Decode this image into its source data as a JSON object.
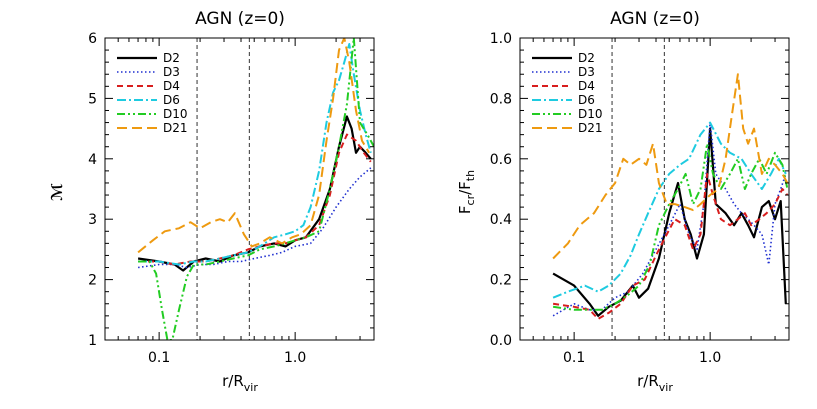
{
  "chart_data": [
    {
      "type": "line",
      "title": "AGN (z=0)",
      "xlabel": "r/R",
      "xlabel_sub": "vir",
      "ylabel": "ℳ",
      "xscale": "log",
      "xlim": [
        0.04,
        3.8
      ],
      "ylim": [
        1,
        6
      ],
      "xticks": [
        {
          "v": 0.1,
          "label": "0.1"
        },
        {
          "v": 1.0,
          "label": "1.0"
        }
      ],
      "yticks": [
        1,
        2,
        3,
        4,
        5,
        6
      ],
      "vlines": [
        0.19,
        0.46
      ],
      "series": [
        {
          "name": "D2",
          "color": "#000000",
          "dash": "",
          "width": 2.2,
          "x": [
            0.07,
            0.1,
            0.13,
            0.15,
            0.18,
            0.22,
            0.28,
            0.35,
            0.45,
            0.55,
            0.7,
            0.85,
            1.0,
            1.2,
            1.5,
            1.8,
            2.1,
            2.4,
            2.6,
            2.8,
            3.0,
            3.3,
            3.6
          ],
          "y": [
            2.35,
            2.3,
            2.25,
            2.15,
            2.3,
            2.35,
            2.3,
            2.4,
            2.45,
            2.55,
            2.6,
            2.55,
            2.65,
            2.7,
            3.0,
            3.5,
            4.2,
            4.7,
            4.5,
            4.1,
            4.2,
            4.1,
            4.0
          ]
        },
        {
          "name": "D3",
          "color": "#1f2fd0",
          "dash": "1.5,2.5",
          "width": 1.6,
          "x": [
            0.07,
            0.1,
            0.13,
            0.16,
            0.2,
            0.25,
            0.32,
            0.4,
            0.5,
            0.65,
            0.8,
            1.0,
            1.3,
            1.6,
            2.0,
            2.5,
            3.0,
            3.6
          ],
          "y": [
            2.2,
            2.25,
            2.25,
            2.2,
            2.25,
            2.25,
            2.3,
            2.3,
            2.35,
            2.4,
            2.45,
            2.55,
            2.6,
            2.85,
            3.2,
            3.5,
            3.7,
            3.85
          ]
        },
        {
          "name": "D4",
          "color": "#d81e1e",
          "dash": "6,4",
          "width": 2,
          "x": [
            0.07,
            0.1,
            0.13,
            0.17,
            0.22,
            0.28,
            0.35,
            0.45,
            0.55,
            0.7,
            0.85,
            1.0,
            1.2,
            1.5,
            1.8,
            2.1,
            2.4,
            2.8,
            3.2,
            3.6
          ],
          "y": [
            2.3,
            2.3,
            2.25,
            2.3,
            2.3,
            2.35,
            2.4,
            2.5,
            2.55,
            2.6,
            2.6,
            2.65,
            2.7,
            2.9,
            3.4,
            4.1,
            4.4,
            4.3,
            4.1,
            3.95
          ]
        },
        {
          "name": "D6",
          "color": "#1ecbe0",
          "dash": "9,3,2,3",
          "width": 2,
          "x": [
            0.07,
            0.1,
            0.14,
            0.18,
            0.22,
            0.28,
            0.35,
            0.45,
            0.55,
            0.7,
            0.85,
            1.0,
            1.15,
            1.3,
            1.5,
            1.7,
            1.9,
            2.1,
            2.3,
            2.5,
            2.7,
            3.0,
            3.3,
            3.6
          ],
          "y": [
            2.3,
            2.3,
            2.25,
            2.3,
            2.3,
            2.35,
            2.4,
            2.45,
            2.55,
            2.7,
            2.75,
            2.8,
            2.9,
            3.2,
            3.8,
            4.6,
            5.1,
            5.3,
            5.6,
            5.9,
            5.4,
            4.8,
            4.4,
            4.1
          ]
        },
        {
          "name": "D10",
          "color": "#22cc22",
          "dash": "8,3,2,3,2,3",
          "width": 2,
          "x": [
            0.07,
            0.085,
            0.095,
            0.105,
            0.115,
            0.125,
            0.14,
            0.16,
            0.18,
            0.22,
            0.28,
            0.35,
            0.45,
            0.55,
            0.7,
            0.85,
            1.0,
            1.2,
            1.5,
            1.8,
            2.1,
            2.4,
            2.7,
            3.0,
            3.4,
            3.8
          ],
          "y": [
            2.3,
            2.3,
            2.1,
            1.5,
            1.0,
            1.0,
            1.5,
            2.05,
            2.25,
            2.25,
            2.3,
            2.35,
            2.4,
            2.5,
            2.55,
            2.6,
            2.65,
            2.7,
            2.8,
            3.5,
            4.2,
            4.9,
            6.0,
            4.6,
            4.4,
            4.2
          ]
        },
        {
          "name": "D21",
          "color": "#ee9a10",
          "dash": "10,5",
          "width": 2,
          "x": [
            0.07,
            0.09,
            0.11,
            0.14,
            0.17,
            0.2,
            0.24,
            0.28,
            0.32,
            0.36,
            0.42,
            0.48,
            0.55,
            0.65,
            0.8,
            0.95,
            1.1,
            1.3,
            1.5,
            1.7,
            1.9,
            2.1,
            2.3,
            2.5,
            2.8,
            3.1,
            3.5
          ],
          "y": [
            2.45,
            2.65,
            2.8,
            2.85,
            2.95,
            2.85,
            2.95,
            3.0,
            2.95,
            3.1,
            2.75,
            2.55,
            2.6,
            2.7,
            2.6,
            2.7,
            2.75,
            2.9,
            3.4,
            4.3,
            5.0,
            5.8,
            6.0,
            5.6,
            4.8,
            4.3,
            4.1
          ]
        }
      ]
    },
    {
      "type": "line",
      "title": "AGN (z=0)",
      "xlabel": "r/R",
      "xlabel_sub": "vir",
      "ylabel": "F",
      "ylabel_sub1": "cr",
      "ylabel_mid": "/F",
      "ylabel_sub2": "th",
      "xscale": "log",
      "xlim": [
        0.04,
        3.8
      ],
      "ylim": [
        0.0,
        1.0
      ],
      "xticks": [
        {
          "v": 0.1,
          "label": "0.1"
        },
        {
          "v": 1.0,
          "label": "1.0"
        }
      ],
      "yticks": [
        "0.0",
        "0.2",
        "0.4",
        "0.6",
        "0.8",
        "1.0"
      ],
      "vlines": [
        0.19,
        0.46
      ],
      "series": [
        {
          "name": "D2",
          "color": "#000000",
          "dash": "",
          "width": 2.2,
          "x": [
            0.07,
            0.1,
            0.13,
            0.15,
            0.18,
            0.22,
            0.27,
            0.3,
            0.35,
            0.42,
            0.5,
            0.58,
            0.65,
            0.72,
            0.8,
            0.9,
            1.0,
            1.1,
            1.3,
            1.5,
            1.7,
            1.9,
            2.1,
            2.4,
            2.7,
            3.0,
            3.3,
            3.6
          ],
          "y": [
            0.22,
            0.18,
            0.12,
            0.08,
            0.11,
            0.13,
            0.18,
            0.14,
            0.17,
            0.27,
            0.42,
            0.52,
            0.4,
            0.35,
            0.27,
            0.35,
            0.7,
            0.45,
            0.42,
            0.38,
            0.42,
            0.38,
            0.34,
            0.44,
            0.46,
            0.4,
            0.46,
            0.12
          ]
        },
        {
          "name": "D3",
          "color": "#1f2fd0",
          "dash": "1.5,2.5",
          "width": 1.6,
          "x": [
            0.07,
            0.1,
            0.13,
            0.16,
            0.2,
            0.25,
            0.32,
            0.4,
            0.5,
            0.6,
            0.7,
            0.8,
            0.9,
            1.0,
            1.1,
            1.3,
            1.5,
            1.7,
            1.9,
            2.1,
            2.4,
            2.7,
            3.0,
            3.3,
            3.6
          ],
          "y": [
            0.08,
            0.12,
            0.1,
            0.1,
            0.14,
            0.16,
            0.22,
            0.3,
            0.38,
            0.45,
            0.35,
            0.3,
            0.45,
            0.72,
            0.55,
            0.5,
            0.45,
            0.42,
            0.4,
            0.38,
            0.35,
            0.25,
            0.45,
            0.5,
            0.55
          ]
        },
        {
          "name": "D4",
          "color": "#d81e1e",
          "dash": "6,4",
          "width": 2,
          "x": [
            0.07,
            0.1,
            0.13,
            0.15,
            0.18,
            0.22,
            0.27,
            0.33,
            0.4,
            0.48,
            0.55,
            0.65,
            0.75,
            0.85,
            0.95,
            1.05,
            1.2,
            1.4,
            1.6,
            1.8,
            2.0,
            2.3,
            2.6,
            3.0,
            3.4,
            3.7
          ],
          "y": [
            0.12,
            0.11,
            0.1,
            0.07,
            0.09,
            0.12,
            0.18,
            0.2,
            0.28,
            0.35,
            0.4,
            0.38,
            0.3,
            0.35,
            0.55,
            0.48,
            0.4,
            0.38,
            0.4,
            0.42,
            0.38,
            0.4,
            0.42,
            0.45,
            0.5,
            0.48
          ]
        },
        {
          "name": "D6",
          "color": "#1ecbe0",
          "dash": "9,3,2,3",
          "width": 2,
          "x": [
            0.07,
            0.09,
            0.12,
            0.15,
            0.18,
            0.22,
            0.26,
            0.3,
            0.35,
            0.42,
            0.5,
            0.6,
            0.7,
            0.85,
            1.0,
            1.2,
            1.4,
            1.7,
            2.0,
            2.4,
            2.8,
            3.2,
            3.6
          ],
          "y": [
            0.14,
            0.16,
            0.18,
            0.16,
            0.18,
            0.22,
            0.28,
            0.35,
            0.42,
            0.5,
            0.55,
            0.58,
            0.6,
            0.68,
            0.72,
            0.65,
            0.62,
            0.6,
            0.55,
            0.5,
            0.55,
            0.6,
            0.55
          ]
        },
        {
          "name": "D10",
          "color": "#22cc22",
          "dash": "8,3,2,3,2,3",
          "width": 2,
          "x": [
            0.07,
            0.1,
            0.13,
            0.16,
            0.2,
            0.25,
            0.3,
            0.36,
            0.42,
            0.5,
            0.58,
            0.66,
            0.75,
            0.85,
            0.95,
            1.05,
            1.2,
            1.4,
            1.6,
            1.8,
            2.0,
            2.3,
            2.6,
            3.0,
            3.4,
            3.7
          ],
          "y": [
            0.11,
            0.1,
            0.1,
            0.1,
            0.12,
            0.15,
            0.18,
            0.25,
            0.38,
            0.45,
            0.5,
            0.55,
            0.45,
            0.5,
            0.65,
            0.55,
            0.5,
            0.55,
            0.6,
            0.5,
            0.55,
            0.6,
            0.55,
            0.62,
            0.58,
            0.5
          ]
        },
        {
          "name": "D21",
          "color": "#ee9a10",
          "dash": "10,5",
          "width": 2,
          "x": [
            0.07,
            0.09,
            0.11,
            0.14,
            0.17,
            0.2,
            0.23,
            0.26,
            0.3,
            0.34,
            0.38,
            0.42,
            0.48,
            0.55,
            0.65,
            0.75,
            0.85,
            1.0,
            1.15,
            1.3,
            1.45,
            1.6,
            1.75,
            1.9,
            2.1,
            2.4,
            2.7,
            3.0,
            3.4,
            3.7
          ],
          "y": [
            0.27,
            0.32,
            0.38,
            0.42,
            0.48,
            0.52,
            0.6,
            0.58,
            0.6,
            0.58,
            0.65,
            0.52,
            0.45,
            0.45,
            0.44,
            0.43,
            0.45,
            0.48,
            0.5,
            0.6,
            0.75,
            0.88,
            0.7,
            0.65,
            0.7,
            0.55,
            0.6,
            0.58,
            0.55,
            0.52
          ]
        }
      ]
    }
  ]
}
